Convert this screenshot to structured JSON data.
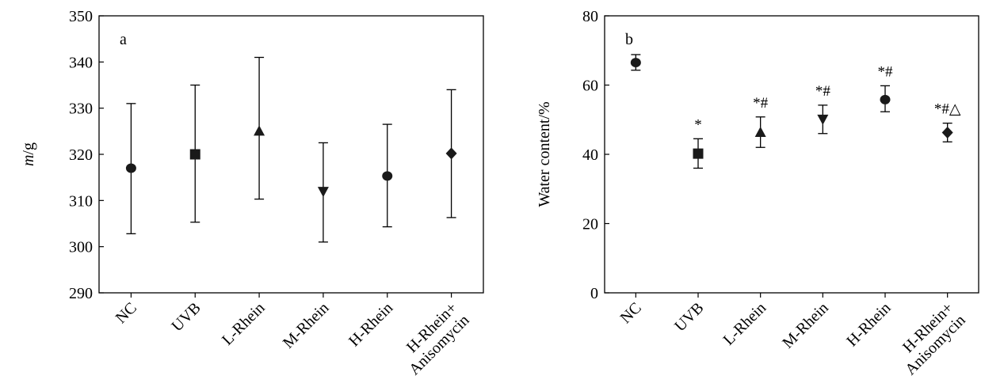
{
  "chart_data": [
    {
      "type": "scatter",
      "panel_label": "a",
      "ylabel_italic": "m",
      "ylabel_rest": "/g",
      "xlabel": "",
      "ylim": [
        290,
        350
      ],
      "yticks": [
        "290",
        "300",
        "310",
        "320",
        "330",
        "340",
        "350"
      ],
      "categories": [
        [
          "NC"
        ],
        [
          "UVB"
        ],
        [
          "L-Rhein"
        ],
        [
          "M-Rhein"
        ],
        [
          "H-Rhein"
        ],
        [
          "H-Rhein+",
          "Anisomycin"
        ]
      ],
      "markers": [
        "circle",
        "square",
        "triangle-up",
        "triangle-down",
        "circle",
        "diamond"
      ],
      "values": [
        317,
        320,
        325,
        312,
        315.3,
        320.2
      ],
      "err_high": [
        331,
        335,
        341,
        322.5,
        326.5,
        334
      ],
      "err_low": [
        302.8,
        305.3,
        310.3,
        301,
        304.3,
        306.3
      ],
      "annotations": [
        "",
        "",
        "",
        "",
        "",
        ""
      ],
      "grid": false
    },
    {
      "type": "scatter",
      "panel_label": "b",
      "ylabel": "Water content/%",
      "xlabel": "",
      "ylim": [
        0,
        80
      ],
      "yticks": [
        "0",
        "20",
        "40",
        "60",
        "80"
      ],
      "categories": [
        [
          "NC"
        ],
        [
          "UVB"
        ],
        [
          "L-Rhein"
        ],
        [
          "M-Rhein"
        ],
        [
          "H-Rhein"
        ],
        [
          "H-Rhein+",
          "Anisomycin"
        ]
      ],
      "markers": [
        "circle",
        "square",
        "triangle-up",
        "triangle-down",
        "circle",
        "diamond"
      ],
      "values": [
        66.5,
        40.2,
        46.3,
        50.2,
        55.8,
        46.3
      ],
      "err_high": [
        68.8,
        44.5,
        50.8,
        54.2,
        59.8,
        49
      ],
      "err_low": [
        64.3,
        36,
        42,
        46,
        52.3,
        43.6
      ],
      "annotations": [
        "",
        "*",
        "*#",
        "*#",
        "*#",
        "*#△"
      ],
      "grid": false
    }
  ]
}
